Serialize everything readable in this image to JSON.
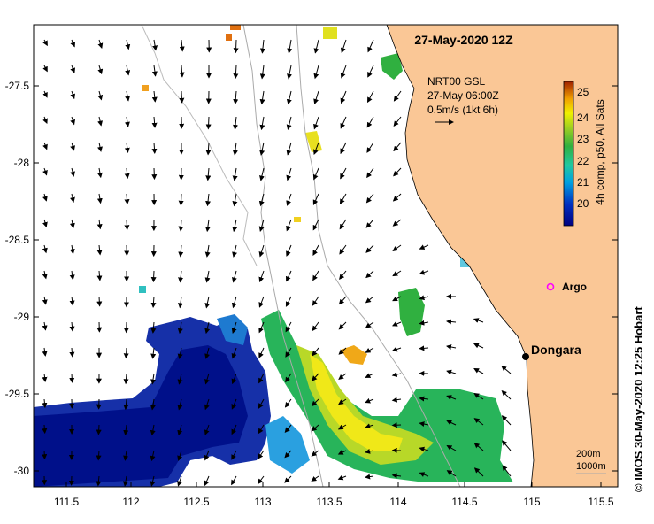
{
  "map": {
    "title": "27-May-2020 12Z",
    "product_line1": "NRT00 GSL",
    "product_line2": "27-May 06:00Z",
    "scale_arrow_label": "0.5m/s (1kt 6h)",
    "colorbar_label": "4h comp, p50, All Sats",
    "colorbar_ticks": [
      "25",
      "24",
      "23",
      "22",
      "21",
      "20"
    ],
    "argo_label": "Argo",
    "station_label": "Dongara",
    "contour_legend_1": "200m",
    "contour_legend_2": "1000m",
    "credit": "© IMOS 30-May-2020 12:25 Hobart",
    "y_ticks": [
      "-27.5",
      "-28",
      "-28.5",
      "-29",
      "-29.5",
      "-30"
    ],
    "x_ticks": [
      "111.5",
      "112",
      "112.5",
      "113",
      "113.5",
      "114",
      "114.5",
      "115",
      "115.5"
    ]
  },
  "colors": {
    "land": "#fac796",
    "argo": "#ff00ff",
    "sst_cold": "#00008b",
    "sst_mid": "#22b24c",
    "sst_warm": "#f0e020"
  }
}
